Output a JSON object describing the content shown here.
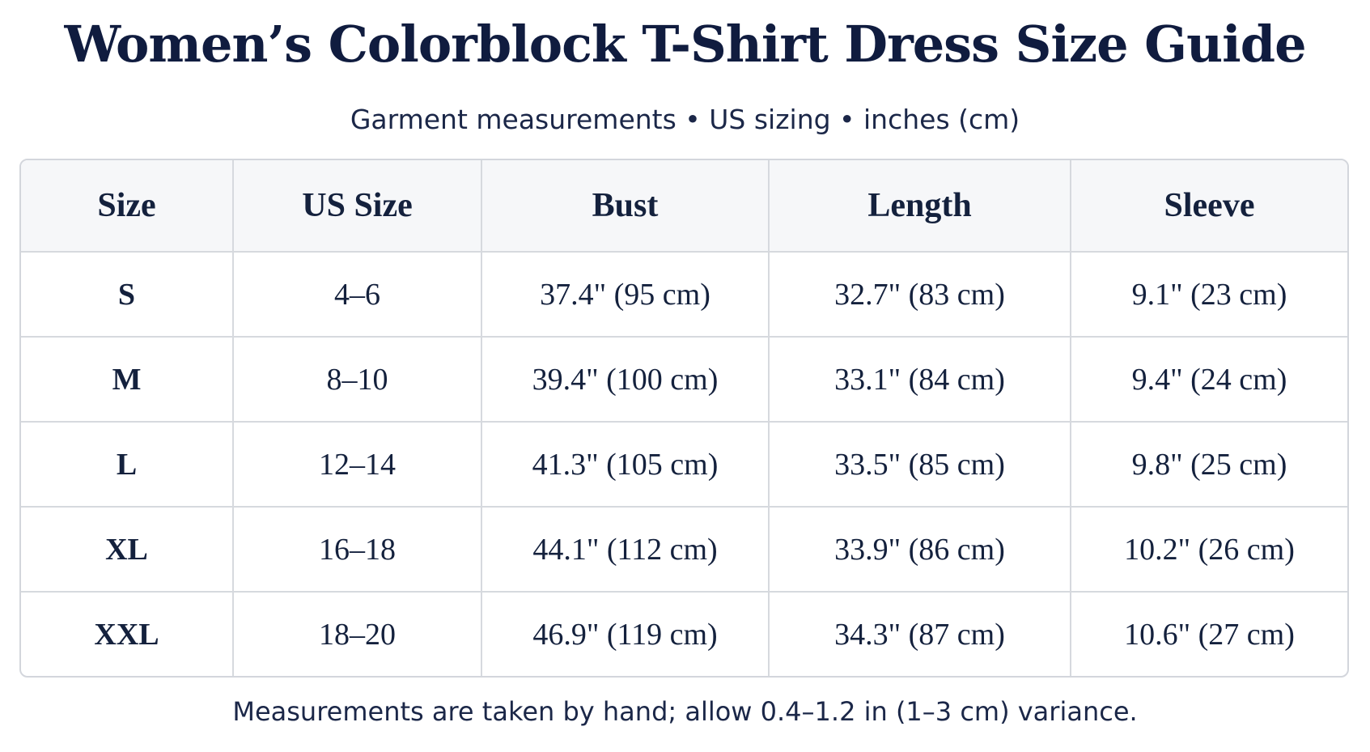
{
  "header": {
    "title": "Women’s Colorblock T-Shirt Dress Size Guide",
    "subtitle": "Garment measurements • US sizing • inches (cm)"
  },
  "table": {
    "columns": [
      "Size",
      "US Size",
      "Bust",
      "Length",
      "Sleeve"
    ],
    "rows": [
      [
        "S",
        "4–6",
        "37.4\" (95 cm)",
        "32.7\" (83 cm)",
        "9.1\" (23 cm)"
      ],
      [
        "M",
        "8–10",
        "39.4\" (100 cm)",
        "33.1\" (84 cm)",
        "9.4\" (24 cm)"
      ],
      [
        "L",
        "12–14",
        "41.3\" (105 cm)",
        "33.5\" (85 cm)",
        "9.8\" (25 cm)"
      ],
      [
        "XL",
        "16–18",
        "44.1\" (112 cm)",
        "33.9\" (86 cm)",
        "10.2\" (26 cm)"
      ],
      [
        "XXL",
        "18–20",
        "46.9\" (119 cm)",
        "34.3\" (87 cm)",
        "10.6\" (27 cm)"
      ]
    ]
  },
  "footnote": "Measurements are taken by hand; allow 0.4–1.2 in (1–3 cm) variance."
}
